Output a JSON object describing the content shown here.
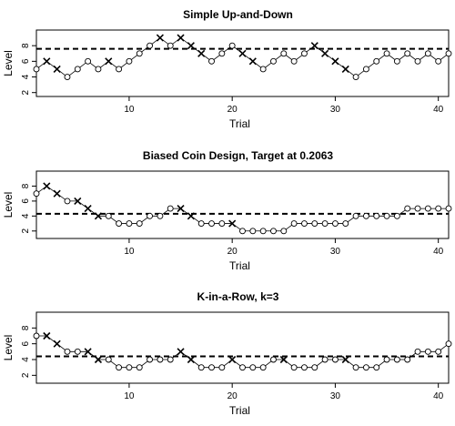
{
  "chart_data": [
    {
      "type": "line",
      "title": "Simple Up-and-Down",
      "xlabel": "Trial",
      "ylabel": "Level",
      "xlim": [
        1,
        41
      ],
      "ylim": [
        1.5,
        10
      ],
      "xticks": [
        10,
        20,
        30,
        40
      ],
      "yticks": [
        2,
        4,
        6,
        8
      ],
      "target_line": 7.6,
      "legend": "none",
      "grid": false,
      "series": [
        {
          "x": [
            1,
            2,
            3,
            4,
            5,
            6,
            7,
            8,
            9,
            10,
            11,
            12,
            13,
            14,
            15,
            16,
            17,
            18,
            19,
            20,
            21,
            22,
            23,
            24,
            25,
            26,
            27,
            28,
            29,
            30,
            31,
            32,
            33,
            34,
            35,
            36,
            37,
            38,
            39,
            40,
            41
          ],
          "values": [
            5,
            6,
            5,
            4,
            5,
            6,
            5,
            6,
            5,
            6,
            7,
            8,
            9,
            8,
            9,
            8,
            7,
            6,
            7,
            8,
            7,
            6,
            5,
            6,
            7,
            6,
            7,
            8,
            7,
            6,
            5,
            4,
            5,
            6,
            7,
            6,
            7,
            6,
            7,
            6,
            7
          ],
          "marker": [
            "o",
            "x",
            "x",
            "o",
            "o",
            "o",
            "o",
            "x",
            "o",
            "o",
            "o",
            "o",
            "x",
            "o",
            "x",
            "x",
            "x",
            "o",
            "o",
            "o",
            "x",
            "x",
            "o",
            "o",
            "o",
            "o",
            "o",
            "x",
            "x",
            "x",
            "x",
            "o",
            "o",
            "o",
            "o",
            "o",
            "o",
            "o",
            "o",
            "o",
            "o"
          ]
        }
      ]
    },
    {
      "type": "line",
      "title": "Biased Coin Design, Target at 0.2063",
      "xlabel": "Trial",
      "ylabel": "Level",
      "xlim": [
        1,
        41
      ],
      "ylim": [
        1,
        10
      ],
      "xticks": [
        10,
        20,
        30,
        40
      ],
      "yticks": [
        2,
        4,
        6,
        8
      ],
      "target_line": 4.3,
      "legend": "none",
      "grid": false,
      "series": [
        {
          "x": [
            1,
            2,
            3,
            4,
            5,
            6,
            7,
            8,
            9,
            10,
            11,
            12,
            13,
            14,
            15,
            16,
            17,
            18,
            19,
            20,
            21,
            22,
            23,
            24,
            25,
            26,
            27,
            28,
            29,
            30,
            31,
            32,
            33,
            34,
            35,
            36,
            37,
            38,
            39,
            40,
            41
          ],
          "values": [
            7,
            8,
            7,
            6,
            6,
            5,
            4,
            4,
            3,
            3,
            3,
            4,
            4,
            5,
            5,
            4,
            3,
            3,
            3,
            3,
            2,
            2,
            2,
            2,
            2,
            3,
            3,
            3,
            3,
            3,
            3,
            4,
            4,
            4,
            4,
            4,
            5,
            5,
            5,
            5,
            5
          ],
          "marker": [
            "o",
            "x",
            "x",
            "o",
            "x",
            "x",
            "x",
            "o",
            "o",
            "o",
            "o",
            "o",
            "o",
            "o",
            "x",
            "x",
            "o",
            "o",
            "o",
            "x",
            "o",
            "o",
            "o",
            "o",
            "o",
            "o",
            "o",
            "o",
            "o",
            "o",
            "o",
            "o",
            "o",
            "o",
            "o",
            "o",
            "o",
            "o",
            "o",
            "o",
            "o"
          ]
        }
      ]
    },
    {
      "type": "line",
      "title": "K-in-a-Row, k=3",
      "xlabel": "Trial",
      "ylabel": "Level",
      "xlim": [
        1,
        41
      ],
      "ylim": [
        1,
        10
      ],
      "xticks": [
        10,
        20,
        30,
        40
      ],
      "yticks": [
        2,
        4,
        6,
        8
      ],
      "target_line": 4.4,
      "legend": "none",
      "grid": false,
      "series": [
        {
          "x": [
            1,
            2,
            3,
            4,
            5,
            6,
            7,
            8,
            9,
            10,
            11,
            12,
            13,
            14,
            15,
            16,
            17,
            18,
            19,
            20,
            21,
            22,
            23,
            24,
            25,
            26,
            27,
            28,
            29,
            30,
            31,
            32,
            33,
            34,
            35,
            36,
            37,
            38,
            39,
            40,
            41
          ],
          "values": [
            7,
            7,
            6,
            5,
            5,
            5,
            4,
            4,
            3,
            3,
            3,
            4,
            4,
            4,
            5,
            4,
            3,
            3,
            3,
            4,
            3,
            3,
            3,
            4,
            4,
            3,
            3,
            3,
            4,
            4,
            4,
            3,
            3,
            3,
            4,
            4,
            4,
            5,
            5,
            5,
            6
          ],
          "marker": [
            "o",
            "x",
            "x",
            "o",
            "o",
            "x",
            "x",
            "o",
            "o",
            "o",
            "o",
            "o",
            "o",
            "o",
            "x",
            "x",
            "o",
            "o",
            "o",
            "x",
            "o",
            "o",
            "o",
            "o",
            "x",
            "o",
            "o",
            "o",
            "o",
            "o",
            "x",
            "o",
            "o",
            "o",
            "o",
            "o",
            "o",
            "o",
            "o",
            "o",
            "o"
          ]
        }
      ]
    }
  ]
}
